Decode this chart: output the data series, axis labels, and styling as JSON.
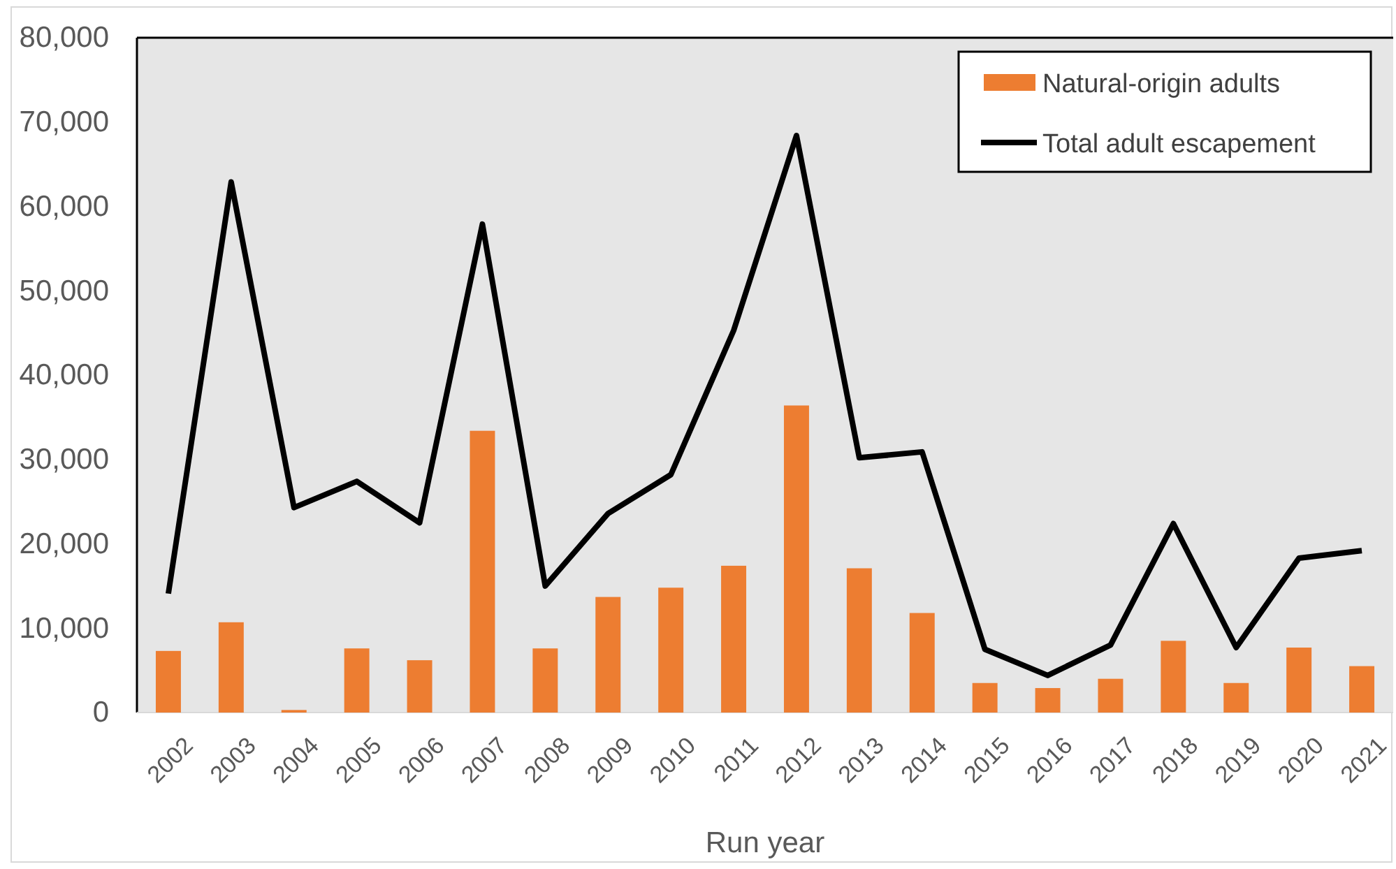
{
  "chart_data": {
    "type": "bar",
    "xlabel": "Run year",
    "categories": [
      "2002",
      "2003",
      "2004",
      "2005",
      "2006",
      "2007",
      "2008",
      "2009",
      "2010",
      "2011",
      "2012",
      "2013",
      "2014",
      "2015",
      "2016",
      "2017",
      "2018",
      "2019",
      "2020",
      "2021"
    ],
    "series": [
      {
        "name": "Natural-origin adults",
        "color": "#ed7d31",
        "values": [
          7300,
          10700,
          300,
          7600,
          6200,
          33400,
          7600,
          13700,
          14800,
          17400,
          36400,
          17100,
          11800,
          3500,
          2900,
          4000,
          8500,
          3500,
          7700,
          5500
        ]
      },
      {
        "name": "Total adult escapement",
        "type": "line",
        "color": "#000000",
        "values": [
          14100,
          62900,
          24300,
          27400,
          22500,
          57900,
          15000,
          23600,
          28200,
          45300,
          68400,
          30200,
          30900,
          7500,
          4400,
          8000,
          22400,
          7700,
          18300,
          19200
        ]
      }
    ],
    "ylim": [
      0,
      80000
    ],
    "yticks": [
      {
        "value": 0,
        "label": "0"
      },
      {
        "value": 10000,
        "label": "10,000"
      },
      {
        "value": 20000,
        "label": "20,000"
      },
      {
        "value": 30000,
        "label": "30,000"
      },
      {
        "value": 40000,
        "label": "40,000"
      },
      {
        "value": 50000,
        "label": "50,000"
      },
      {
        "value": 60000,
        "label": "60,000"
      },
      {
        "value": 70000,
        "label": "70,000"
      },
      {
        "value": 80000,
        "label": "80,000"
      }
    ],
    "legend": "top right",
    "grid": false
  }
}
